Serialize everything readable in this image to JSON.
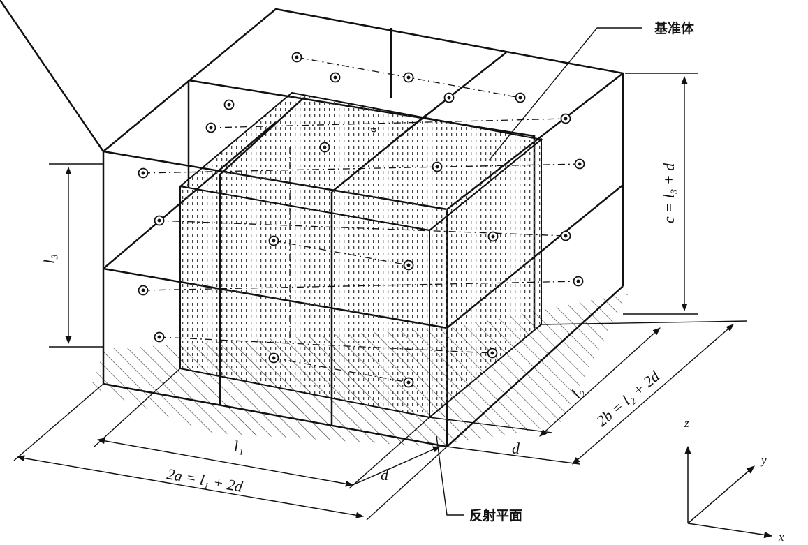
{
  "labels": {
    "reference_box": "基准体",
    "reflecting_plane": "反射平面",
    "c_eq": "c = l₃ + d",
    "l3": "l₃",
    "l2": "l₂",
    "b_eq": "2b = l₂ + 2d",
    "d_right": "d",
    "l1": "l₁",
    "a_eq": "2a = l₁ + 2d",
    "d_front": "d",
    "d_top": "d",
    "axis_z": "z",
    "axis_y": "y",
    "axis_x": "x"
  },
  "colors": {
    "line": "#111111",
    "shade": "#555555",
    "paper": "#ffffff"
  }
}
